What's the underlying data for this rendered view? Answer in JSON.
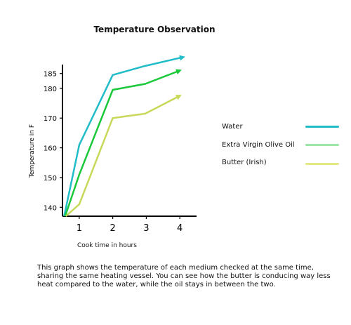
{
  "chart_data": {
    "type": "line",
    "title": "Temperature Observation",
    "xlabel": "Cook time in hours",
    "ylabel": "Temperature in F",
    "x_ticks": [
      1,
      2,
      3,
      4
    ],
    "y_ticks": [
      140,
      150,
      160,
      170,
      180,
      185
    ],
    "xlim": [
      0.5,
      4.5
    ],
    "ylim": [
      137,
      188
    ],
    "grid": false,
    "legend_position": "right",
    "series": [
      {
        "name": "Water",
        "color": "#20bcc8",
        "points": [
          [
            0.55,
            137
          ],
          [
            1,
            161
          ],
          [
            2,
            184.5
          ],
          [
            2.95,
            187.5
          ],
          [
            4.1,
            190.5
          ]
        ]
      },
      {
        "name": "Extra Virgin Olive Oil",
        "color": "#19c93a",
        "points": [
          [
            0.58,
            137
          ],
          [
            1,
            151
          ],
          [
            2,
            179.5
          ],
          [
            2.97,
            181.5
          ],
          [
            4,
            186
          ]
        ]
      },
      {
        "name": "Butter (Irish)",
        "color": "#c8d858",
        "points": [
          [
            0.6,
            137
          ],
          [
            1,
            141
          ],
          [
            2,
            170
          ],
          [
            2.97,
            171.5
          ],
          [
            4,
            177.5
          ]
        ]
      }
    ],
    "legend_line_colors": [
      "#20bcc8",
      "#9be6a8",
      "#e2ea86"
    ]
  },
  "caption": "This graph shows the temperature of each medium checked at the same time, sharing the same heating vessel. You can see how the butter is conducing way less heat compared to the water, while the oil stays in between the two."
}
